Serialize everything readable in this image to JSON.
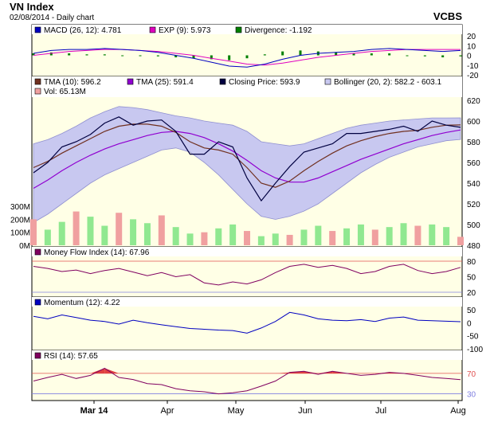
{
  "header": {
    "title": "VN Index",
    "subtitle": "02/08/2014 - Daily chart",
    "brand": "VCBS"
  },
  "x_axis": {
    "labels": [
      "Mar 14",
      "Apr",
      "May",
      "Jun",
      "Jul",
      "Aug"
    ]
  },
  "colors": {
    "panel_bg": "#FFFFE6",
    "band_fill": "#C8C8F0",
    "price": "#000040",
    "tma10": "#703020",
    "tma25": "#9000D0",
    "vol_up": "#90E890",
    "vol_down": "#F0A0A0",
    "macd": "#0000C0",
    "signal": "#E000C0",
    "diverg": "#008000",
    "mfi": "#800060",
    "mom": "#0000C0",
    "rsi": "#800060",
    "ref_red": "#E05050",
    "ref_blue": "#8080E0"
  },
  "chart_data": [
    {
      "type": "line",
      "panel": "MACD",
      "legend": [
        {
          "label": "MACD (26, 12): 4.781",
          "color": "#0000C0"
        },
        {
          "label": "EXP (9): 5.973",
          "color": "#E000C0"
        },
        {
          "label": "Divergence: -1.192",
          "color": "#008000"
        }
      ],
      "ylim": [
        -20,
        20
      ],
      "y_ticks": [
        20,
        10,
        0,
        -10,
        -20
      ],
      "series": [
        {
          "name": "MACD",
          "values": [
            2,
            5,
            6,
            6,
            7,
            6,
            5,
            3,
            0,
            -3,
            -7,
            -11,
            -12,
            -9,
            -4,
            0,
            2,
            3,
            4,
            6,
            7,
            6,
            5,
            4,
            5
          ]
        },
        {
          "name": "EXP",
          "values": [
            0,
            2,
            4,
            5,
            6,
            6,
            5,
            4,
            2,
            0,
            -3,
            -6,
            -9,
            -10,
            -8,
            -5,
            -2,
            0,
            2,
            4,
            5,
            6,
            6,
            6,
            6
          ]
        },
        {
          "name": "Divergence",
          "values": [
            2,
            3,
            2,
            1,
            1,
            0,
            0,
            -1,
            -2,
            -3,
            -4,
            -5,
            -3,
            1,
            4,
            5,
            4,
            3,
            2,
            2,
            2,
            0,
            -1,
            -2,
            -1
          ]
        }
      ]
    },
    {
      "type": "line",
      "panel": "Price",
      "legend": [
        {
          "label": "TMA (10): 596.2",
          "color": "#703020"
        },
        {
          "label": "TMA (25): 591.4",
          "color": "#9000D0"
        },
        {
          "label": "Closing Price: 593.9",
          "color": "#000040"
        },
        {
          "label": "Bollinger (20, 2): 582.2 - 603.1",
          "color": "#C8C8F0"
        },
        {
          "label": "Vol: 65.13M",
          "color": "#F0A0A0"
        }
      ],
      "ylim": [
        480,
        620
      ],
      "y_ticks": [
        620,
        600,
        580,
        560,
        540,
        520,
        500,
        480
      ],
      "vol_ticks": [
        "300M",
        "200M",
        "100M",
        "0M"
      ],
      "vol_lim": [
        0,
        380
      ],
      "series": [
        {
          "name": "Closing Price",
          "values": [
            550,
            560,
            575,
            580,
            587,
            598,
            604,
            596,
            600,
            601,
            590,
            568,
            568,
            580,
            575,
            545,
            523,
            540,
            556,
            570,
            574,
            578,
            588,
            588,
            590,
            592,
            595,
            590,
            600,
            596,
            593.9
          ]
        },
        {
          "name": "TMA (10)",
          "values": [
            555,
            561,
            569,
            576,
            583,
            590,
            595,
            597,
            597,
            595,
            589,
            580,
            574,
            572,
            568,
            555,
            540,
            536,
            542,
            552,
            561,
            569,
            576,
            581,
            585,
            588,
            590,
            591,
            594,
            596,
            596.2
          ]
        },
        {
          "name": "TMA (25)",
          "values": [
            535,
            543,
            552,
            560,
            567,
            573,
            578,
            582,
            586,
            589,
            590,
            588,
            584,
            578,
            571,
            562,
            552,
            545,
            541,
            541,
            545,
            551,
            557,
            563,
            568,
            573,
            578,
            582,
            586,
            589,
            591.4
          ]
        },
        {
          "name": "Bollinger Upper",
          "values": [
            578,
            582,
            588,
            595,
            603,
            609,
            614,
            613,
            611,
            608,
            605,
            603,
            600,
            598,
            596,
            590,
            580,
            578,
            576,
            578,
            583,
            588,
            593,
            596,
            598,
            600,
            601,
            602,
            603,
            603,
            603.1
          ]
        },
        {
          "name": "Bollinger Lower",
          "values": [
            502,
            510,
            520,
            530,
            540,
            548,
            554,
            560,
            566,
            572,
            574,
            570,
            560,
            548,
            534,
            520,
            508,
            505,
            508,
            513,
            520,
            530,
            540,
            550,
            558,
            565,
            570,
            575,
            578,
            581,
            582.2
          ]
        },
        {
          "name": "Volume",
          "values": [
            200,
            120,
            180,
            260,
            220,
            150,
            250,
            200,
            170,
            230,
            140,
            90,
            100,
            130,
            160,
            110,
            70,
            90,
            80,
            120,
            150,
            110,
            130,
            160,
            120,
            140,
            170,
            150,
            160,
            140,
            65
          ]
        }
      ]
    },
    {
      "type": "line",
      "panel": "MFI",
      "legend": [
        {
          "label": "Money Flow Index (14): 67.96",
          "color": "#800060"
        }
      ],
      "ylim": [
        20,
        80
      ],
      "y_ticks": [
        80,
        50,
        20
      ],
      "series": [
        {
          "name": "MFI",
          "values": [
            70,
            66,
            60,
            63,
            56,
            62,
            66,
            59,
            52,
            58,
            50,
            54,
            38,
            34,
            40,
            36,
            44,
            58,
            70,
            74,
            68,
            72,
            66,
            56,
            60,
            70,
            74,
            62,
            56,
            60,
            67.96
          ]
        }
      ]
    },
    {
      "type": "line",
      "panel": "Momentum",
      "legend": [
        {
          "label": "Momentum (12): 4.22",
          "color": "#0000C0"
        }
      ],
      "ylim": [
        -100,
        50
      ],
      "y_ticks": [
        50,
        0,
        -50,
        -100
      ],
      "series": [
        {
          "name": "Momentum",
          "values": [
            25,
            15,
            30,
            20,
            10,
            5,
            -5,
            10,
            0,
            -8,
            -15,
            -22,
            -25,
            -28,
            -30,
            -40,
            -20,
            5,
            40,
            30,
            15,
            10,
            8,
            12,
            5,
            18,
            22,
            10,
            8,
            6,
            4.22
          ]
        }
      ]
    },
    {
      "type": "line",
      "panel": "RSI",
      "legend": [
        {
          "label": "RSI (14): 57.65",
          "color": "#800060"
        }
      ],
      "ylim": [
        20,
        90
      ],
      "y_ticks": [
        70,
        30
      ],
      "series": [
        {
          "name": "RSI",
          "values": [
            55,
            62,
            68,
            60,
            66,
            80,
            62,
            58,
            50,
            48,
            40,
            36,
            34,
            30,
            32,
            36,
            45,
            55,
            72,
            74,
            68,
            74,
            70,
            66,
            68,
            72,
            70,
            66,
            62,
            60,
            57.65
          ]
        }
      ]
    }
  ]
}
